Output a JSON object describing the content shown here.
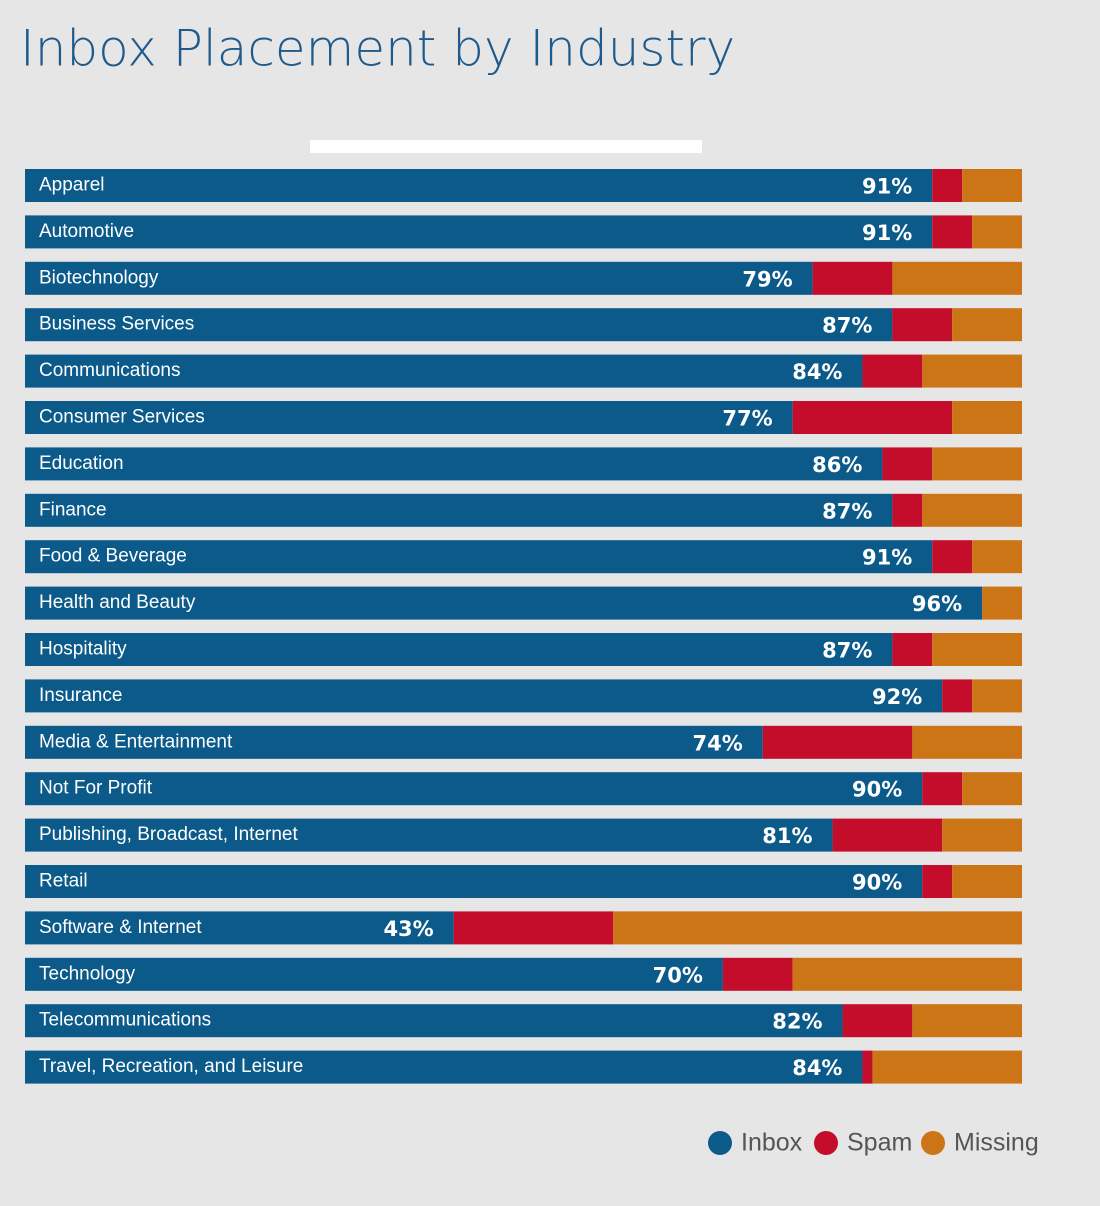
{
  "chart_data": {
    "type": "stacked-bar-horizontal",
    "title": "Inbox Placement by Industry",
    "categories": [
      "Apparel",
      "Automotive",
      "Biotechnology",
      "Business Services",
      "Communications",
      "Consumer Services",
      "Education",
      "Finance",
      "Food & Beverage",
      "Health and Beauty",
      "Hospitality",
      "Insurance",
      "Media & Entertainment",
      "Not For Profit",
      "Publishing, Broadcast, Internet",
      "Retail",
      "Software & Internet",
      "Technology",
      "Telecommunications",
      "Travel, Recreation, and Leisure"
    ],
    "series": [
      {
        "name": "Inbox",
        "color": "#0b5a8a",
        "values": [
          91,
          91,
          79,
          87,
          84,
          77,
          86,
          87,
          91,
          96,
          87,
          92,
          74,
          90,
          81,
          90,
          43,
          70,
          82,
          84
        ],
        "value_labels": [
          "91%",
          "91%",
          "79%",
          "87%",
          "84%",
          "77%",
          "86%",
          "87%",
          "91%",
          "96%",
          "87%",
          "92%",
          "74%",
          "90%",
          "81%",
          "90%",
          "43%",
          "70%",
          "82%",
          "84%"
        ]
      },
      {
        "name": "Spam",
        "color": "#c40d2a",
        "values": [
          3,
          4,
          8,
          6,
          6,
          16,
          5,
          3,
          4,
          0,
          4,
          3,
          15,
          4,
          11,
          3,
          16,
          7,
          7,
          1
        ]
      },
      {
        "name": "Missing",
        "color": "#cc7516",
        "values": [
          6,
          5,
          13,
          7,
          10,
          7,
          9,
          10,
          5,
          4,
          9,
          5,
          11,
          6,
          8,
          7,
          41,
          23,
          11,
          15
        ]
      }
    ],
    "xlim": [
      0,
      100
    ]
  }
}
